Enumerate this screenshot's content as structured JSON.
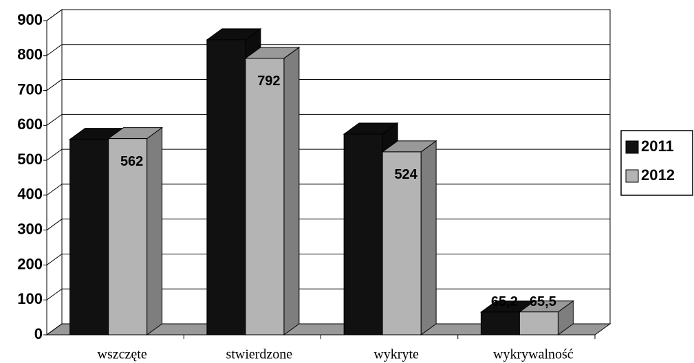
{
  "chart_data": {
    "type": "bar3d",
    "categories": [
      "wszczęte",
      "stwierdzone",
      "wykryte",
      "wykrywalność"
    ],
    "series": [
      {
        "name": "2011",
        "color": "#111111",
        "values": [
          560,
          845,
          575,
          65.2
        ],
        "value_labels": [
          null,
          null,
          null,
          "65,2"
        ]
      },
      {
        "name": "2012",
        "color": "#b4b4b4",
        "values": [
          562,
          792,
          524,
          65.5
        ],
        "value_labels": [
          "562",
          "792",
          "524",
          "65,5"
        ]
      }
    ],
    "ylim": [
      0,
      900
    ],
    "yticks": [
      0,
      100,
      200,
      300,
      400,
      500,
      600,
      700,
      800,
      900
    ],
    "grid": true,
    "legend": "right"
  }
}
